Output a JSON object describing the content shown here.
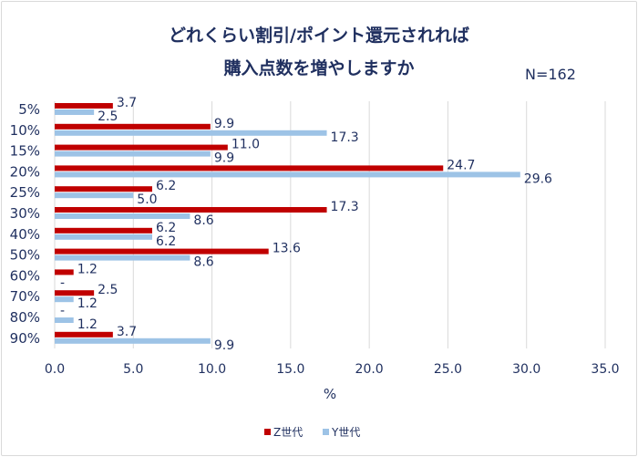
{
  "chart_data": {
    "type": "bar",
    "orientation": "horizontal",
    "title_line1": "どれくらい割引/ポイント還元されれば",
    "title_line2": "購入点数を増やしますか",
    "annotation": "N=162",
    "categories": [
      "5%",
      "10%",
      "15%",
      "20%",
      "25%",
      "30%",
      "40%",
      "50%",
      "60%",
      "70%",
      "80%",
      "90%"
    ],
    "series": [
      {
        "name": "Z世代",
        "color": "#c00000",
        "values": [
          3.7,
          9.9,
          11.0,
          24.7,
          6.2,
          17.3,
          6.2,
          13.6,
          1.2,
          2.5,
          0,
          3.7
        ],
        "labels": [
          "3.7",
          "9.9",
          "11.0",
          "24.7",
          "6.2",
          "17.3",
          "6.2",
          "13.6",
          "1.2",
          "2.5",
          "-",
          "3.7"
        ]
      },
      {
        "name": "Y世代",
        "color": "#9dc3e6",
        "values": [
          2.5,
          17.3,
          9.9,
          29.6,
          5.0,
          8.6,
          6.2,
          8.6,
          0,
          1.2,
          1.2,
          9.9
        ],
        "labels": [
          "2.5",
          "17.3",
          "9.9",
          "29.6",
          "5.0",
          "8.6",
          "6.2",
          "8.6",
          "-",
          "1.2",
          "1.2",
          "9.9"
        ]
      }
    ],
    "xlabel": "%",
    "xlim": [
      0,
      35
    ],
    "xticks": [
      "0.0",
      "5.0",
      "10.0",
      "15.0",
      "20.0",
      "25.0",
      "30.0",
      "35.0"
    ],
    "grid": true,
    "legend": "bottom"
  }
}
